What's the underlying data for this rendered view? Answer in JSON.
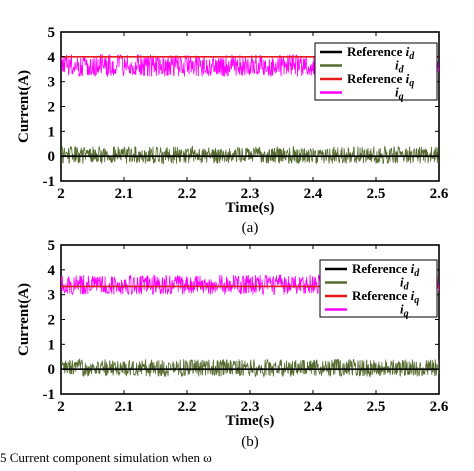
{
  "chart_data": [
    {
      "type": "line",
      "panel_label": "(a)",
      "xlabel": "Time(s)",
      "ylabel": "Current(A)",
      "xlim": [
        2,
        2.6
      ],
      "ylim": [
        -1,
        5
      ],
      "x_ticks": [
        "2",
        "2.1",
        "2.2",
        "2.3",
        "2.4",
        "2.5",
        "2.6"
      ],
      "y_ticks": [
        "-1",
        "0",
        "1",
        "2",
        "3",
        "4",
        "5"
      ],
      "legend_position": "top-right",
      "series": [
        {
          "name": "Reference i",
          "sub": "d",
          "color": "#000000",
          "kind": "constant",
          "value": 0
        },
        {
          "name": "i",
          "sub": "d",
          "color": "#556b2f",
          "kind": "noise",
          "center": 0.05,
          "amplitude": 0.35
        },
        {
          "name": "Reference i",
          "sub": "q",
          "color": "#e8191a",
          "kind": "constant",
          "value": 4.0
        },
        {
          "name": "i",
          "sub": "q",
          "color": "#ff00ff",
          "kind": "noise",
          "center": 3.65,
          "amplitude": 0.45
        }
      ]
    },
    {
      "type": "line",
      "panel_label": "(b)",
      "xlabel": "Time(s)",
      "ylabel": "Current(A)",
      "xlim": [
        2,
        2.6
      ],
      "ylim": [
        -1,
        5
      ],
      "x_ticks": [
        "2",
        "2.1",
        "2.2",
        "2.3",
        "2.4",
        "2.5",
        "2.6"
      ],
      "y_ticks": [
        "-1",
        "0",
        "1",
        "2",
        "3",
        "4",
        "5"
      ],
      "legend_position": "right",
      "series": [
        {
          "name": "Reference i",
          "sub": "d",
          "color": "#000000",
          "kind": "constant",
          "value": 0
        },
        {
          "name": "i",
          "sub": "d",
          "color": "#556b2f",
          "kind": "noise",
          "center": 0.05,
          "amplitude": 0.35
        },
        {
          "name": "Reference i",
          "sub": "q",
          "color": "#e8191a",
          "kind": "constant",
          "value": 3.33
        },
        {
          "name": "i",
          "sub": "q",
          "color": "#ff00ff",
          "kind": "noise",
          "center": 3.4,
          "amplitude": 0.4
        }
      ]
    }
  ],
  "caption": "5 Current component simulation when ω"
}
